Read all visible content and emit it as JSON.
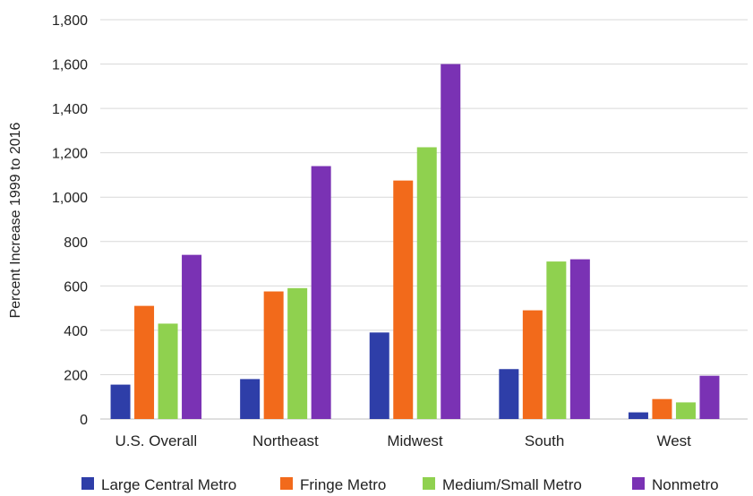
{
  "chart_data": {
    "type": "bar",
    "title": "",
    "xlabel": "",
    "ylabel": "Percent Increase 1999 to 2016",
    "ylim": [
      0,
      1800
    ],
    "yticks": [
      0,
      200,
      400,
      600,
      800,
      1000,
      1200,
      1400,
      1600,
      1800
    ],
    "ytick_labels": [
      "0",
      "200",
      "400",
      "600",
      "800",
      "1,000",
      "1,200",
      "1,400",
      "1,600",
      "1,800"
    ],
    "grid": true,
    "legend_position": "bottom",
    "categories": [
      "U.S. Overall",
      "Northeast",
      "Midwest",
      "South",
      "West"
    ],
    "series": [
      {
        "name": "Large Central Metro",
        "color": "#2e3ea8",
        "values": [
          155,
          180,
          390,
          225,
          30
        ]
      },
      {
        "name": "Fringe Metro",
        "color": "#f26a1b",
        "values": [
          510,
          575,
          1075,
          490,
          90
        ]
      },
      {
        "name": "Medium/Small Metro",
        "color": "#8fd14f",
        "values": [
          430,
          590,
          1225,
          710,
          75
        ]
      },
      {
        "name": "Nonmetro",
        "color": "#7a32b4",
        "values": [
          740,
          1140,
          1600,
          720,
          195
        ]
      }
    ]
  }
}
